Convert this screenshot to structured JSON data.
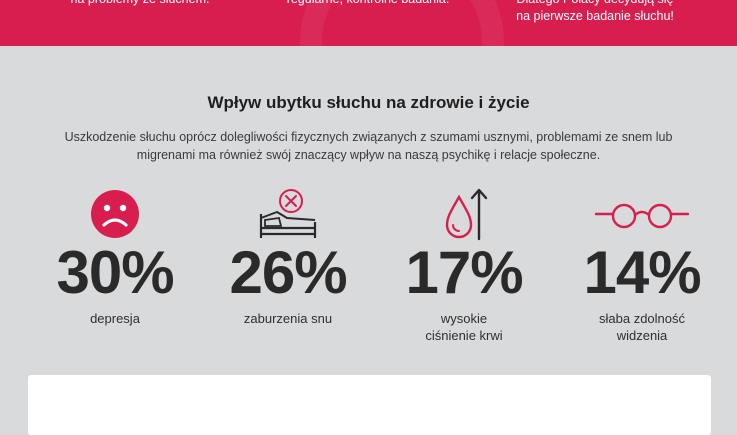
{
  "banner": {
    "color": "#d81d4f",
    "text_left": "na problemy ze słuchem.",
    "text_center": "regularne, kontrolne badania.",
    "text_right_line1": "Dlatego Polacy decydują się",
    "text_right_line2": "na pierwsze badanie słuchu!"
  },
  "section": {
    "title": "Wpływ ubytku słuchu na zdrowie i życie",
    "intro": "Uszkodzenie słuchu oprócz dolegliwości fizycznych związanych z szumami usznymi, problemami ze snem lub migrenami ma również swój znaczący wpływ na naszą psychikę i relacje społeczne."
  },
  "stats": [
    {
      "value": "30%",
      "label": "depresja",
      "icon": "sad-face-icon"
    },
    {
      "value": "26%",
      "label": "zaburzenia snu",
      "icon": "bed-cross-icon"
    },
    {
      "value": "17%",
      "label": "wysokie\nciśnienie krwi",
      "icon": "blood-drop-arrow-icon"
    },
    {
      "value": "14%",
      "label": "słaba zdolność\nwidzenia",
      "icon": "glasses-icon"
    }
  ],
  "colors": {
    "accent": "#d81d4f",
    "background": "#d9dadc",
    "text": "#2a2a2a"
  }
}
